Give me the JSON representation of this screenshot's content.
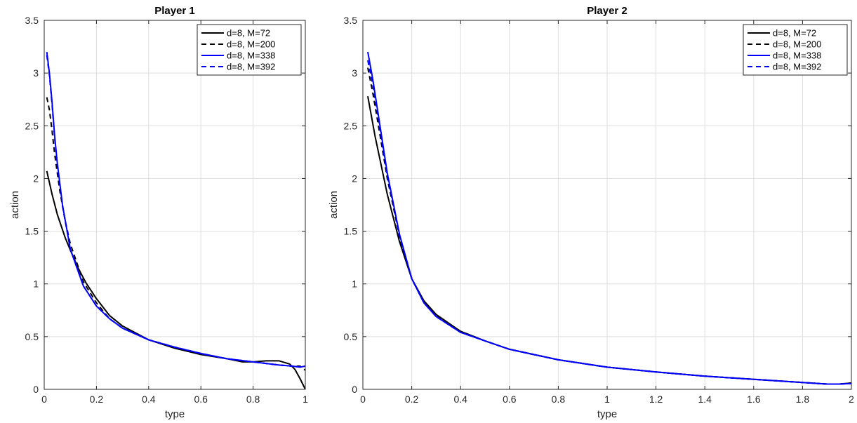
{
  "chart_data": [
    {
      "type": "line",
      "title": "Player 1",
      "xlabel": "type",
      "ylabel": "action",
      "xlim": [
        0,
        1
      ],
      "ylim": [
        0,
        3.5
      ],
      "xticks": [
        0,
        0.2,
        0.4,
        0.6,
        0.8,
        1
      ],
      "xtick_labels": [
        "0",
        "0.2",
        "0.4",
        "0.6",
        "0.8",
        "1"
      ],
      "yticks": [
        0,
        0.5,
        1,
        1.5,
        2,
        2.5,
        3,
        3.5
      ],
      "ytick_labels": [
        "0",
        "0.5",
        "1",
        "1.5",
        "2",
        "2.5",
        "3",
        "3.5"
      ],
      "grid": true,
      "legend_position": "top-right",
      "series": [
        {
          "name": "d=8, M=72",
          "color": "#000000",
          "style": "solid",
          "x": [
            0.01,
            0.03,
            0.05,
            0.08,
            0.1,
            0.13,
            0.16,
            0.2,
            0.25,
            0.3,
            0.4,
            0.5,
            0.6,
            0.7,
            0.76,
            0.8,
            0.85,
            0.9,
            0.94,
            0.96,
            0.98,
            0.99,
            1.0
          ],
          "y": [
            2.07,
            1.85,
            1.66,
            1.44,
            1.32,
            1.15,
            1.01,
            0.86,
            0.7,
            0.6,
            0.47,
            0.39,
            0.33,
            0.29,
            0.26,
            0.26,
            0.27,
            0.27,
            0.24,
            0.19,
            0.1,
            0.05,
            0.0
          ]
        },
        {
          "name": "d=8, M=200",
          "color": "#000000",
          "style": "dashed",
          "x": [
            0.01,
            0.02,
            0.03,
            0.04,
            0.06,
            0.08,
            0.1,
            0.15,
            0.2,
            0.25,
            0.3,
            0.4,
            0.5,
            0.6,
            0.7,
            0.8,
            0.9,
            0.95,
            0.98,
            1.0,
            1.01
          ],
          "y": [
            2.77,
            2.65,
            2.45,
            2.23,
            1.88,
            1.6,
            1.38,
            1.02,
            0.82,
            0.67,
            0.58,
            0.47,
            0.4,
            0.34,
            0.29,
            0.26,
            0.23,
            0.22,
            0.22,
            0.18,
            0.15
          ]
        },
        {
          "name": "d=8, M=338",
          "color": "#0000ff",
          "style": "solid",
          "x": [
            0.01,
            0.02,
            0.03,
            0.04,
            0.05,
            0.07,
            0.1,
            0.15,
            0.2,
            0.25,
            0.3,
            0.4,
            0.5,
            0.6,
            0.7,
            0.8,
            0.9,
            0.95,
            0.98,
            1.0,
            1.01
          ],
          "y": [
            3.2,
            3.0,
            2.72,
            2.4,
            2.15,
            1.75,
            1.33,
            0.98,
            0.79,
            0.67,
            0.58,
            0.47,
            0.4,
            0.34,
            0.29,
            0.26,
            0.23,
            0.22,
            0.21,
            0.22,
            0.23
          ]
        },
        {
          "name": "d=8, M=392",
          "color": "#0000ff",
          "style": "dashed",
          "x": [
            0.01,
            0.02,
            0.03,
            0.04,
            0.05,
            0.07,
            0.1,
            0.15,
            0.2,
            0.25,
            0.3,
            0.4,
            0.5,
            0.6,
            0.7,
            0.8,
            0.9,
            0.95,
            0.98,
            1.0,
            1.01
          ],
          "y": [
            3.17,
            2.98,
            2.7,
            2.38,
            2.13,
            1.74,
            1.33,
            0.98,
            0.79,
            0.67,
            0.58,
            0.47,
            0.4,
            0.34,
            0.29,
            0.26,
            0.23,
            0.22,
            0.21,
            0.22,
            0.22
          ]
        }
      ]
    },
    {
      "type": "line",
      "title": "Player 2",
      "xlabel": "type",
      "ylabel": "action",
      "xlim": [
        0,
        2
      ],
      "ylim": [
        0,
        3.5
      ],
      "xticks": [
        0,
        0.2,
        0.4,
        0.6,
        0.8,
        1,
        1.2,
        1.4,
        1.6,
        1.8,
        2
      ],
      "xtick_labels": [
        "0",
        "0.2",
        "0.4",
        "0.6",
        "0.8",
        "1",
        "1.2",
        "1.4",
        "1.6",
        "1.8",
        "2"
      ],
      "yticks": [
        0,
        0.5,
        1,
        1.5,
        2,
        2.5,
        3,
        3.5
      ],
      "ytick_labels": [
        "0",
        "0.5",
        "1",
        "1.5",
        "2",
        "2.5",
        "3",
        "3.5"
      ],
      "grid": true,
      "legend_position": "top-right",
      "series": [
        {
          "name": "d=8, M=72",
          "color": "#000000",
          "style": "solid",
          "x": [
            0.02,
            0.05,
            0.1,
            0.15,
            0.2,
            0.25,
            0.3,
            0.4,
            0.5,
            0.6,
            0.8,
            1.0,
            1.2,
            1.4,
            1.6,
            1.8,
            1.9,
            1.95,
            2.0,
            2.02
          ],
          "y": [
            2.78,
            2.4,
            1.85,
            1.4,
            1.05,
            0.84,
            0.71,
            0.55,
            0.46,
            0.38,
            0.28,
            0.21,
            0.165,
            0.125,
            0.095,
            0.065,
            0.05,
            0.05,
            0.06,
            0.07
          ]
        },
        {
          "name": "d=8, M=200",
          "color": "#000000",
          "style": "dashed",
          "x": [
            0.02,
            0.04,
            0.06,
            0.1,
            0.15,
            0.2,
            0.25,
            0.3,
            0.4,
            0.5,
            0.6,
            0.8,
            1.0,
            1.2,
            1.4,
            1.6,
            1.8,
            1.9,
            1.95,
            2.0,
            2.02
          ],
          "y": [
            3.05,
            2.82,
            2.55,
            2.0,
            1.45,
            1.05,
            0.83,
            0.7,
            0.55,
            0.46,
            0.38,
            0.28,
            0.21,
            0.165,
            0.125,
            0.095,
            0.065,
            0.05,
            0.05,
            0.06,
            0.07
          ]
        },
        {
          "name": "d=8, M=338",
          "color": "#0000ff",
          "style": "solid",
          "x": [
            0.02,
            0.04,
            0.06,
            0.1,
            0.15,
            0.2,
            0.25,
            0.3,
            0.4,
            0.5,
            0.6,
            0.8,
            1.0,
            1.2,
            1.4,
            1.6,
            1.8,
            1.9,
            1.95,
            2.0,
            2.02
          ],
          "y": [
            3.2,
            2.95,
            2.65,
            2.05,
            1.47,
            1.05,
            0.82,
            0.69,
            0.54,
            0.46,
            0.38,
            0.28,
            0.21,
            0.165,
            0.125,
            0.095,
            0.065,
            0.05,
            0.05,
            0.055,
            0.06
          ]
        },
        {
          "name": "d=8, M=392",
          "color": "#0000ff",
          "style": "dashed",
          "x": [
            0.02,
            0.04,
            0.06,
            0.1,
            0.15,
            0.2,
            0.25,
            0.3,
            0.4,
            0.5,
            0.6,
            0.8,
            1.0,
            1.2,
            1.4,
            1.6,
            1.8,
            1.9,
            1.95,
            2.0,
            2.02
          ],
          "y": [
            3.12,
            2.9,
            2.62,
            2.03,
            1.46,
            1.05,
            0.82,
            0.69,
            0.54,
            0.46,
            0.38,
            0.28,
            0.21,
            0.165,
            0.125,
            0.095,
            0.065,
            0.05,
            0.05,
            0.055,
            0.06
          ]
        }
      ]
    }
  ]
}
